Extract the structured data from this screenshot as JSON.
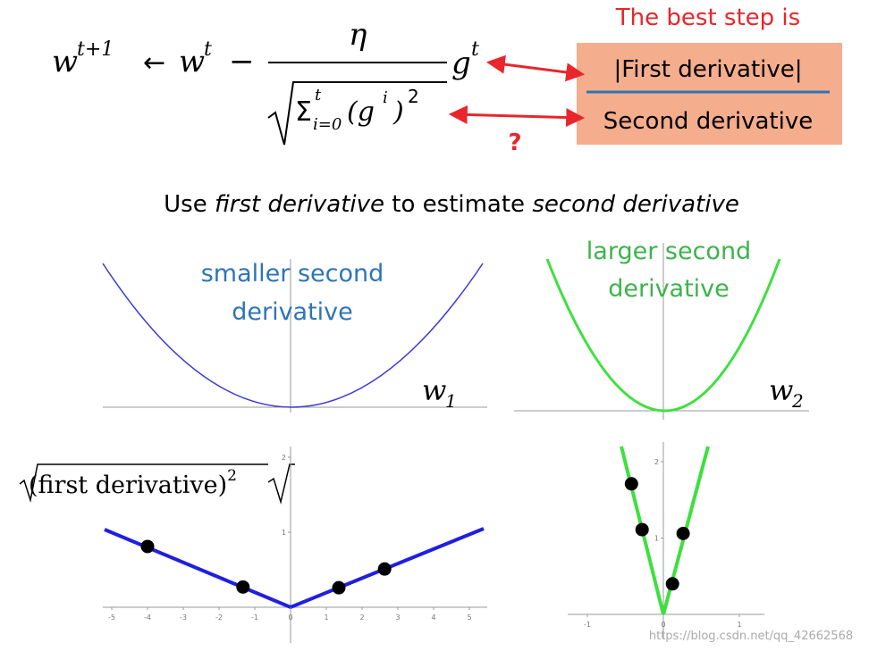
{
  "formula": {
    "lhs": "w",
    "lhs_sup": "t+1",
    "arrow": "←",
    "w": "w",
    "w_sup": "t",
    "minus": "−",
    "numerator": "η",
    "sigma": "Σ",
    "sigma_sup": "t",
    "sigma_sub": "i=0",
    "g_open": "(g",
    "g_sup": "i",
    "g_close": ")",
    "g_close_sup": "2",
    "g": "g",
    "g_sup_t": "t"
  },
  "box": {
    "title": "The best step is",
    "numerator": "|First derivative|",
    "denominator": "Second derivative",
    "question": "?"
  },
  "subtitle": {
    "a": "Use",
    "b": "first derivative",
    "c": "to estimate",
    "d": "second derivative"
  },
  "top_left": {
    "label_1": "smaller second",
    "label_2": "derivative",
    "var": "w",
    "var_sub": "1"
  },
  "top_right": {
    "label_1": "larger second",
    "label_2": "derivative",
    "var": "w",
    "var_sub": "2"
  },
  "plots": [
    {
      "label": "(first derivative)",
      "label_sup": "2",
      "xticks": [
        -5,
        -4,
        -3,
        -2,
        -1,
        0,
        1,
        2,
        3,
        4,
        5
      ],
      "yticks": [
        1,
        2
      ],
      "points": [
        {
          "x": -4,
          "y": 0.81
        },
        {
          "x": -1.33,
          "y": 0.27
        },
        {
          "x": 1.35,
          "y": 0.26
        },
        {
          "x": 2.63,
          "y": 0.51
        }
      ]
    },
    {
      "xticks": [
        -1,
        0,
        1
      ],
      "yticks": [
        1,
        2
      ],
      "points": [
        {
          "x": -0.42,
          "y": 1.71
        },
        {
          "x": -0.28,
          "y": 1.11
        },
        {
          "x": 0.26,
          "y": 1.06
        },
        {
          "x": 0.12,
          "y": 0.4
        }
      ]
    }
  ],
  "watermark": "https://blog.csdn.net/qq_42662568"
}
